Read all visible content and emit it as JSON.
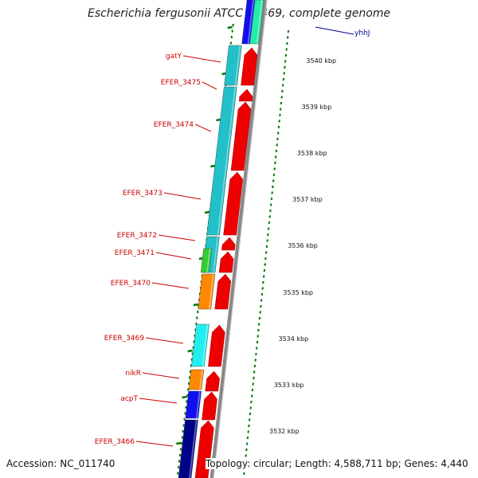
{
  "title": "Escherichia fergusonii ATCC 35469, complete genome",
  "footer": {
    "accession": "Accession: NC_011740",
    "topology": "Topology: circular; Length: 4,588,711 bp; Genes: 4,440"
  },
  "colors": {
    "cds": "#ee0000",
    "label": "#cc0000",
    "backbone": "#888888",
    "tick": "#007700",
    "teal": "#22c0c8",
    "cyan": "#22eeee",
    "orange": "#ff8800",
    "blue": "#1010ee",
    "navy": "#000088",
    "green": "#33cc33",
    "seagreen": "#22eeaa"
  },
  "scale_labels": [
    "3540 kbp",
    "3539 kbp",
    "3538 kbp",
    "3537 kbp",
    "3536 kbp",
    "3535 kbp",
    "3534 kbp",
    "3533 kbp",
    "3532 kbp"
  ],
  "gene_labels": [
    "gatY",
    "EFER_3475",
    "EFER_3474",
    "EFER_3473",
    "EFER_3472",
    "EFER_3471",
    "EFER_3470",
    "EFER_3469",
    "nikR",
    "acpT",
    "EFER_3466",
    "yhhJ"
  ]
}
